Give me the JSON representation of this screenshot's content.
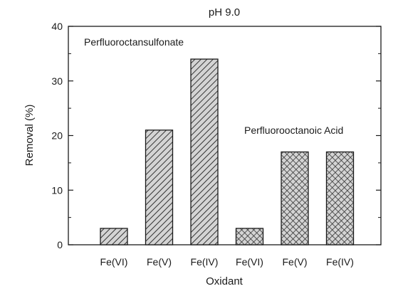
{
  "chart_data": {
    "type": "bar",
    "title": "pH 9.0",
    "xlabel": "Oxidant",
    "ylabel": "Removal (%)",
    "ylim": [
      0,
      40
    ],
    "yticks": [
      0,
      10,
      20,
      30,
      40
    ],
    "grid": false,
    "categories": [
      "Fe(VI)",
      "Fe(V)",
      "Fe(IV)",
      "Fe(VI)",
      "Fe(V)",
      "Fe(IV)"
    ],
    "values": [
      3,
      21,
      34,
      3,
      17,
      17
    ],
    "groups": [
      {
        "label": "Perfluoroctansulfonate",
        "pattern": "diagonal-hatch",
        "indices": [
          0,
          1,
          2
        ]
      },
      {
        "label": "Perfluorooctanoic Acid",
        "pattern": "cross-hatch",
        "indices": [
          3,
          4,
          5
        ]
      }
    ],
    "colors": {
      "axis": "#1a1a1a",
      "bar_fill": "#c8c8c8",
      "hatch": "#333333"
    }
  }
}
